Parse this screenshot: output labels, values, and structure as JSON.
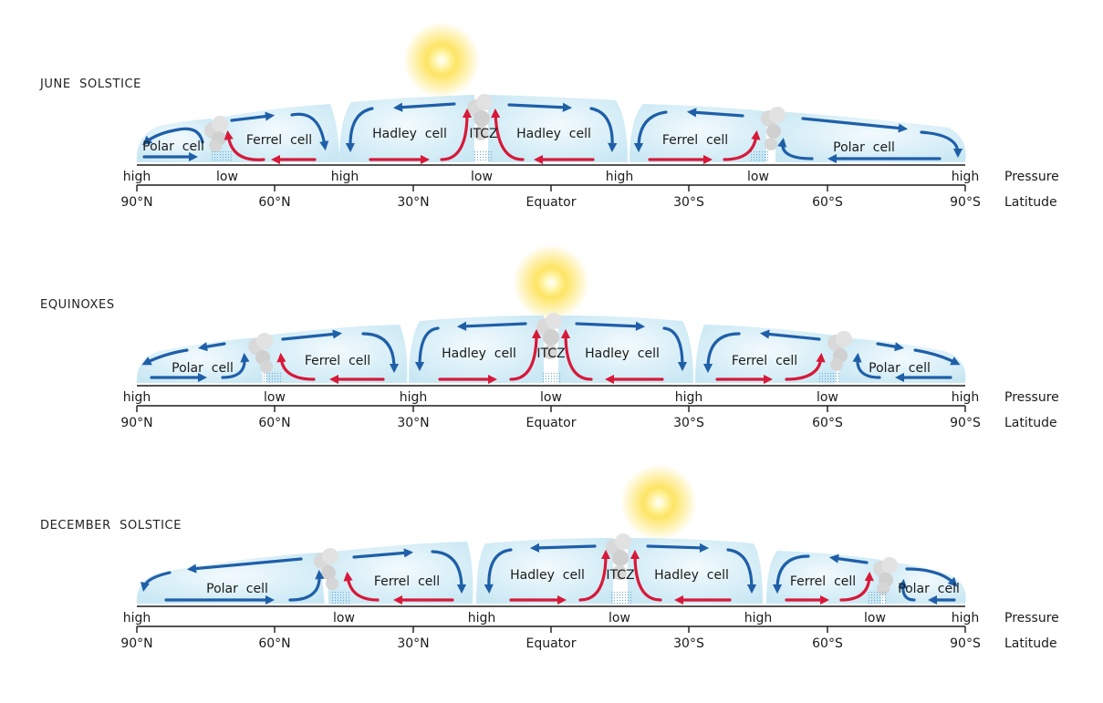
{
  "colors": {
    "cell_fill": "#dff1f8",
    "cell_edge": "#b9e1f0",
    "descending_air": "#1f5fa8",
    "ascending_air": "#d7193a",
    "cloud": "#d9d9d9",
    "sun": "#fde04a",
    "axis": "#1b1b1b"
  },
  "icons": [
    "sun-icon",
    "cloud-icon",
    "rain-icon"
  ],
  "axis_labels": {
    "pressure": "Pressure",
    "latitude": "Latitude"
  },
  "latitude_ticks": [
    "90°N",
    "60°N",
    "30°N",
    "Equator",
    "30°S",
    "60°S",
    "90°S"
  ],
  "panels": [
    {
      "id": "june",
      "title": "JUNE  SOLSTICE",
      "itcz_label": "ITCZ",
      "cells": [
        "Polar  cell",
        "Ferrel  cell",
        "Hadley  cell",
        "Hadley  cell",
        "Ferrel  cell",
        "Polar  cell"
      ],
      "pressure_labels": [
        "high",
        "low",
        "high",
        "low",
        "high",
        "low",
        "high"
      ]
    },
    {
      "id": "equinoxes",
      "title": "EQUINOXES",
      "itcz_label": "ITCZ",
      "cells": [
        "Polar  cell",
        "Ferrel  cell",
        "Hadley  cell",
        "Hadley  cell",
        "Ferrel  cell",
        "Polar  cell"
      ],
      "pressure_labels": [
        "high",
        "low",
        "high",
        "low",
        "high",
        "low",
        "high"
      ]
    },
    {
      "id": "december",
      "title": "DECEMBER  SOLSTICE",
      "itcz_label": "ITCZ",
      "cells": [
        "Polar  cell",
        "Ferrel  cell",
        "Hadley  cell",
        "Hadley  cell",
        "Ferrel  cell",
        "Polar  cell"
      ],
      "pressure_labels": [
        "high",
        "low",
        "high",
        "low",
        "high",
        "low",
        "high"
      ]
    }
  ]
}
